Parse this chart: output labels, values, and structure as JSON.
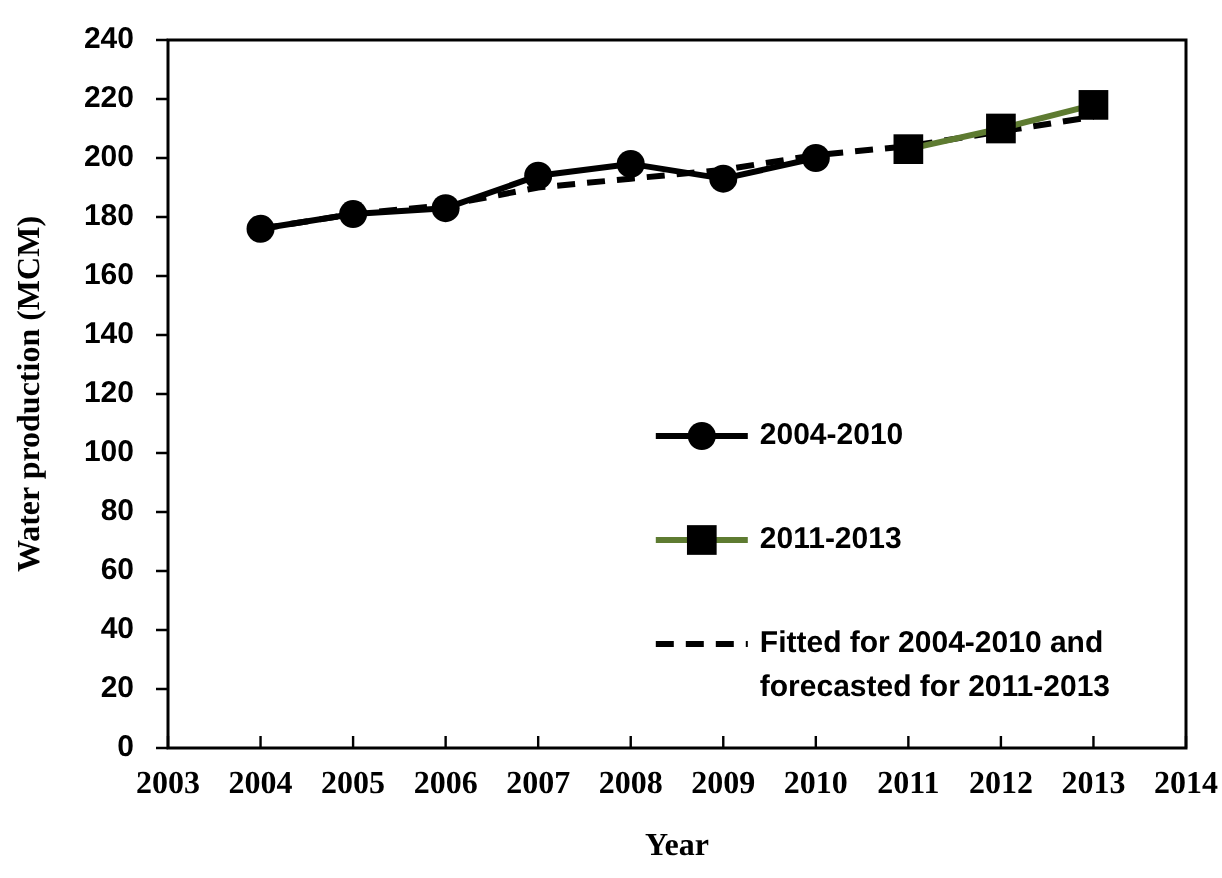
{
  "chart_data": {
    "type": "line",
    "xlabel": "Year",
    "ylabel": "Water production (MCM)",
    "xlim": [
      2003,
      2014
    ],
    "xticks": [
      2003,
      2004,
      2005,
      2006,
      2007,
      2008,
      2009,
      2010,
      2011,
      2012,
      2013,
      2014
    ],
    "ylim": [
      0,
      240
    ],
    "yticks": [
      0,
      20,
      40,
      60,
      80,
      100,
      120,
      140,
      160,
      180,
      200,
      220,
      240
    ],
    "legend": "bottom right",
    "series": [
      {
        "name": "2004-2010",
        "color": "#000000",
        "marker": "circle",
        "x": [
          2004,
          2005,
          2006,
          2007,
          2008,
          2009,
          2010
        ],
        "values": [
          176,
          181,
          183,
          194,
          198,
          193,
          200
        ]
      },
      {
        "name": "2011-2013",
        "color": "#5e7b31",
        "colors": [
          "#000000",
          "#000000",
          "#000000"
        ],
        "marker": "square",
        "x": [
          2011,
          2012,
          2013
        ],
        "values": [
          203,
          210,
          218
        ]
      },
      {
        "name": "Fitted for 2004-2010 and forecasted for 2011-2013",
        "color": "#000000",
        "marker": "none",
        "line_style": "dashed",
        "x": [
          2004,
          2005,
          2006,
          2007,
          2008,
          2009,
          2010,
          2011,
          2012,
          2013
        ],
        "values": [
          176,
          181,
          184,
          190,
          193,
          196,
          201,
          204,
          209,
          214
        ]
      }
    ]
  }
}
